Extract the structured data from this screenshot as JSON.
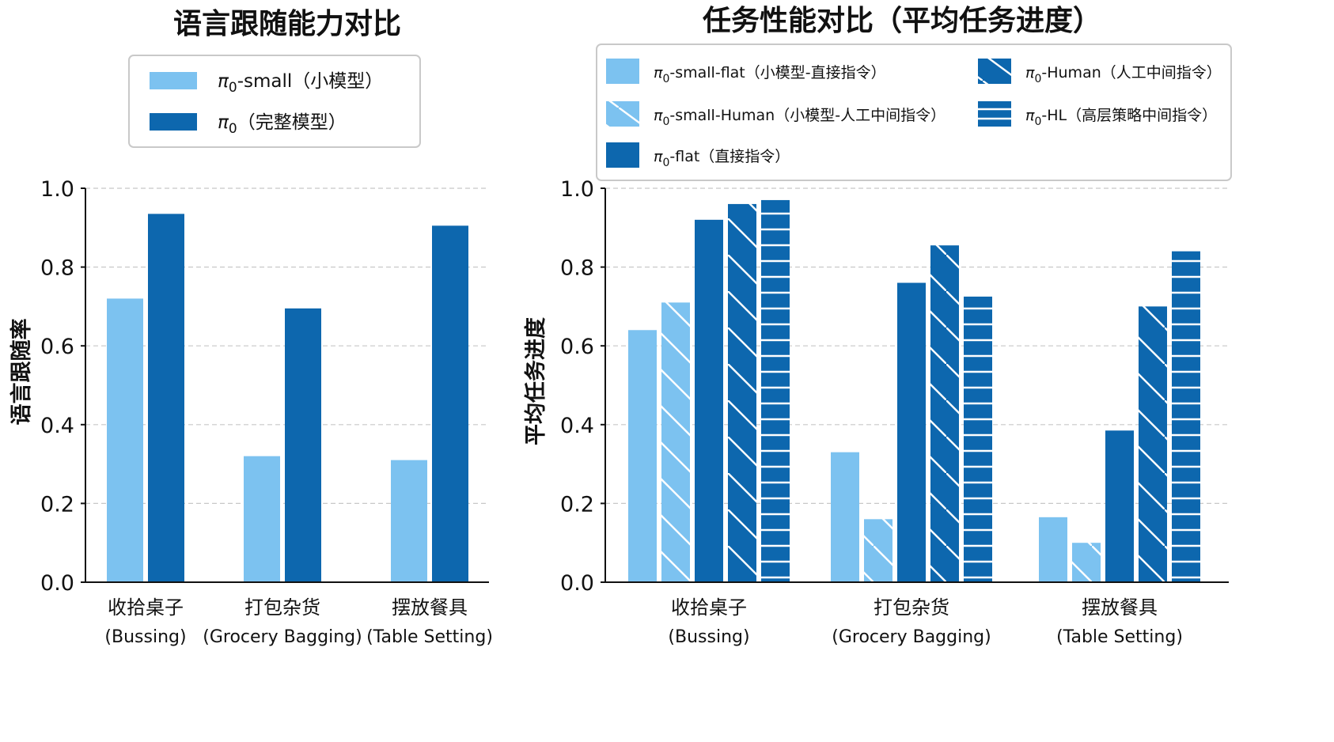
{
  "colors": {
    "light": "#7cc2f0",
    "dark": "#0d67ae",
    "hatch": "#ffffff"
  },
  "chart_data": [
    {
      "type": "bar",
      "title": "语言跟随能力对比",
      "xlabel": "",
      "ylabel": "语言跟随率",
      "ylim": [
        0,
        1.0
      ],
      "yticks": [
        "0.0",
        "0.2",
        "0.4",
        "0.6",
        "0.8",
        "1.0"
      ],
      "grid": true,
      "legend_position": "top",
      "categories": [
        {
          "zh": "收拾桌子",
          "en": "(Bussing)"
        },
        {
          "zh": "打包杂货",
          "en": "(Grocery Bagging)"
        },
        {
          "zh": "摆放餐具",
          "en": "(Table Setting)"
        }
      ],
      "series": [
        {
          "name": "π0-small（小模型）",
          "legend_main": "π",
          "legend_sub": "0",
          "legend_rest": "-small（小模型）",
          "color": "#7cc2f0",
          "hatch": "none",
          "values": [
            0.72,
            0.32,
            0.31
          ]
        },
        {
          "name": "π0（完整模型）",
          "legend_main": "π",
          "legend_sub": "0",
          "legend_rest": "（完整模型）",
          "color": "#0d67ae",
          "hatch": "none",
          "values": [
            0.935,
            0.695,
            0.905
          ]
        }
      ]
    },
    {
      "type": "bar",
      "title": "任务性能对比（平均任务进度）",
      "xlabel": "",
      "ylabel": "平均任务进度",
      "ylim": [
        0,
        1.0
      ],
      "yticks": [
        "0.0",
        "0.2",
        "0.4",
        "0.6",
        "0.8",
        "1.0"
      ],
      "grid": true,
      "legend_position": "top",
      "categories": [
        {
          "zh": "收拾桌子",
          "en": "(Bussing)"
        },
        {
          "zh": "打包杂货",
          "en": "(Grocery Bagging)"
        },
        {
          "zh": "摆放餐具",
          "en": "(Table Setting)"
        }
      ],
      "series": [
        {
          "name": "π0-small-flat（小模型-直接指令）",
          "legend_main": "π",
          "legend_sub": "0",
          "legend_rest": "-small-flat（小模型-直接指令）",
          "color": "#7cc2f0",
          "hatch": "none",
          "values": [
            0.64,
            0.33,
            0.165
          ]
        },
        {
          "name": "π0-small-Human（小模型-人工中间指令）",
          "legend_main": "π",
          "legend_sub": "0",
          "legend_rest": "-small-Human（小模型-人工中间指令）",
          "color": "#7cc2f0",
          "hatch": "diagonal",
          "values": [
            0.71,
            0.16,
            0.1
          ]
        },
        {
          "name": "π0-flat（直接指令）",
          "legend_main": "π",
          "legend_sub": "0",
          "legend_rest": "-flat（直接指令）",
          "color": "#0d67ae",
          "hatch": "none",
          "values": [
            0.92,
            0.76,
            0.385
          ]
        },
        {
          "name": "π0-Human（人工中间指令）",
          "legend_main": "π",
          "legend_sub": "0",
          "legend_rest": "-Human（人工中间指令）",
          "color": "#0d67ae",
          "hatch": "diagonal",
          "values": [
            0.96,
            0.855,
            0.7
          ]
        },
        {
          "name": "π0-HL（高层策略中间指令）",
          "legend_main": "π",
          "legend_sub": "0",
          "legend_rest": "-HL（高层策略中间指令）",
          "color": "#0d67ae",
          "hatch": "horizontal",
          "values": [
            0.97,
            0.725,
            0.84
          ]
        }
      ]
    }
  ]
}
